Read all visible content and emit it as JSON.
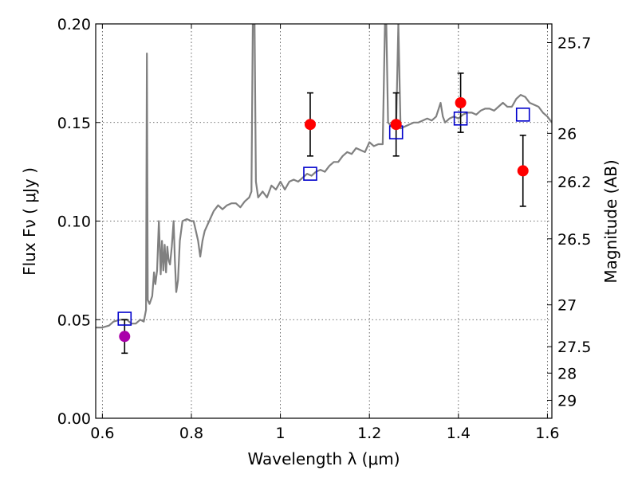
{
  "chart_data": {
    "type": "scatter",
    "xlabel": "Wavelength  λ (μm)",
    "ylabel": "Flux  Fν  ( μJy )",
    "y2label": "Magnitude (AB)",
    "xlim": [
      0.585,
      1.61
    ],
    "ylim": [
      0.0,
      0.2
    ],
    "grid": true,
    "x_ticks": [
      {
        "value": 0.6,
        "label": "0.6"
      },
      {
        "value": 0.8,
        "label": "0.8"
      },
      {
        "value": 1.0,
        "label": "1"
      },
      {
        "value": 1.2,
        "label": "1.2"
      },
      {
        "value": 1.4,
        "label": "1.4"
      },
      {
        "value": 1.6,
        "label": "1.6"
      }
    ],
    "y_ticks": [
      {
        "value": 0.0,
        "label": "0.00"
      },
      {
        "value": 0.05,
        "label": "0.05"
      },
      {
        "value": 0.1,
        "label": "0.10"
      },
      {
        "value": 0.15,
        "label": "0.15"
      },
      {
        "value": 0.2,
        "label": "0.20"
      }
    ],
    "y2_ticks": [
      {
        "flux": 0.1905,
        "label": "25.7"
      },
      {
        "flux": 0.1445,
        "label": "26"
      },
      {
        "flux": 0.12,
        "label": "26.2"
      },
      {
        "flux": 0.091,
        "label": "26.5"
      },
      {
        "flux": 0.0575,
        "label": "27"
      },
      {
        "flux": 0.0363,
        "label": "27.5"
      },
      {
        "flux": 0.0229,
        "label": "28"
      },
      {
        "flux": 0.0091,
        "label": "29"
      }
    ],
    "series": [
      {
        "kind": "model-spectrum",
        "color": "#808080",
        "points": [
          [
            0.585,
            0.046
          ],
          [
            0.6,
            0.046
          ],
          [
            0.615,
            0.047
          ],
          [
            0.625,
            0.049
          ],
          [
            0.64,
            0.05
          ],
          [
            0.655,
            0.05
          ],
          [
            0.665,
            0.048
          ],
          [
            0.675,
            0.048
          ],
          [
            0.685,
            0.05
          ],
          [
            0.693,
            0.049
          ],
          [
            0.698,
            0.055
          ],
          [
            0.7,
            0.185
          ],
          [
            0.702,
            0.06
          ],
          [
            0.706,
            0.058
          ],
          [
            0.712,
            0.062
          ],
          [
            0.716,
            0.074
          ],
          [
            0.719,
            0.068
          ],
          [
            0.723,
            0.075
          ],
          [
            0.727,
            0.1
          ],
          [
            0.731,
            0.073
          ],
          [
            0.734,
            0.09
          ],
          [
            0.737,
            0.075
          ],
          [
            0.74,
            0.088
          ],
          [
            0.743,
            0.074
          ],
          [
            0.746,
            0.087
          ],
          [
            0.749,
            0.08
          ],
          [
            0.752,
            0.078
          ],
          [
            0.756,
            0.087
          ],
          [
            0.76,
            0.1
          ],
          [
            0.763,
            0.08
          ],
          [
            0.766,
            0.064
          ],
          [
            0.77,
            0.07
          ],
          [
            0.774,
            0.09
          ],
          [
            0.78,
            0.1
          ],
          [
            0.79,
            0.101
          ],
          [
            0.8,
            0.1
          ],
          [
            0.805,
            0.1
          ],
          [
            0.81,
            0.095
          ],
          [
            0.815,
            0.09
          ],
          [
            0.82,
            0.082
          ],
          [
            0.825,
            0.09
          ],
          [
            0.83,
            0.095
          ],
          [
            0.84,
            0.1
          ],
          [
            0.85,
            0.105
          ],
          [
            0.86,
            0.108
          ],
          [
            0.87,
            0.106
          ],
          [
            0.88,
            0.108
          ],
          [
            0.89,
            0.109
          ],
          [
            0.9,
            0.109
          ],
          [
            0.91,
            0.107
          ],
          [
            0.92,
            0.11
          ],
          [
            0.93,
            0.112
          ],
          [
            0.935,
            0.115
          ],
          [
            0.938,
            0.2
          ],
          [
            0.942,
            0.2
          ],
          [
            0.945,
            0.12
          ],
          [
            0.95,
            0.112
          ],
          [
            0.96,
            0.115
          ],
          [
            0.97,
            0.112
          ],
          [
            0.98,
            0.118
          ],
          [
            0.99,
            0.116
          ],
          [
            1.0,
            0.12
          ],
          [
            1.01,
            0.116
          ],
          [
            1.02,
            0.12
          ],
          [
            1.03,
            0.121
          ],
          [
            1.04,
            0.12
          ],
          [
            1.05,
            0.122
          ],
          [
            1.06,
            0.124
          ],
          [
            1.07,
            0.123
          ],
          [
            1.08,
            0.125
          ],
          [
            1.09,
            0.126
          ],
          [
            1.1,
            0.125
          ],
          [
            1.11,
            0.128
          ],
          [
            1.12,
            0.13
          ],
          [
            1.13,
            0.13
          ],
          [
            1.14,
            0.133
          ],
          [
            1.15,
            0.135
          ],
          [
            1.16,
            0.134
          ],
          [
            1.17,
            0.137
          ],
          [
            1.18,
            0.136
          ],
          [
            1.19,
            0.135
          ],
          [
            1.2,
            0.14
          ],
          [
            1.21,
            0.138
          ],
          [
            1.22,
            0.139
          ],
          [
            1.23,
            0.139
          ],
          [
            1.235,
            0.2
          ],
          [
            1.238,
            0.2
          ],
          [
            1.242,
            0.15
          ],
          [
            1.25,
            0.148
          ],
          [
            1.26,
            0.147
          ],
          [
            1.265,
            0.2
          ],
          [
            1.27,
            0.147
          ],
          [
            1.28,
            0.148
          ],
          [
            1.29,
            0.149
          ],
          [
            1.3,
            0.15
          ],
          [
            1.31,
            0.15
          ],
          [
            1.32,
            0.151
          ],
          [
            1.33,
            0.152
          ],
          [
            1.34,
            0.151
          ],
          [
            1.35,
            0.153
          ],
          [
            1.36,
            0.16
          ],
          [
            1.365,
            0.153
          ],
          [
            1.37,
            0.15
          ],
          [
            1.38,
            0.152
          ],
          [
            1.39,
            0.153
          ],
          [
            1.4,
            0.152
          ],
          [
            1.41,
            0.154
          ],
          [
            1.42,
            0.155
          ],
          [
            1.43,
            0.155
          ],
          [
            1.44,
            0.154
          ],
          [
            1.45,
            0.156
          ],
          [
            1.46,
            0.157
          ],
          [
            1.47,
            0.157
          ],
          [
            1.48,
            0.156
          ],
          [
            1.49,
            0.158
          ],
          [
            1.5,
            0.16
          ],
          [
            1.51,
            0.158
          ],
          [
            1.52,
            0.158
          ],
          [
            1.53,
            0.162
          ],
          [
            1.54,
            0.164
          ],
          [
            1.55,
            0.163
          ],
          [
            1.56,
            0.16
          ],
          [
            1.57,
            0.159
          ],
          [
            1.58,
            0.158
          ],
          [
            1.59,
            0.155
          ],
          [
            1.6,
            0.153
          ],
          [
            1.61,
            0.15
          ]
        ]
      },
      {
        "kind": "model-photometry",
        "marker": "open-square",
        "color": "#0000cc",
        "points": [
          [
            0.65,
            0.0505
          ],
          [
            1.067,
            0.124
          ],
          [
            1.26,
            0.145
          ],
          [
            1.405,
            0.152
          ],
          [
            1.545,
            0.154
          ]
        ]
      },
      {
        "kind": "observed-photometry",
        "marker": "filled-circle",
        "points": [
          {
            "x": 0.65,
            "y": 0.0415,
            "yerr": [
              0.0085,
              0.0085
            ],
            "color": "#aa00aa"
          },
          {
            "x": 1.067,
            "y": 0.149,
            "yerr": [
              0.016,
              0.016
            ],
            "color": "#ff0000"
          },
          {
            "x": 1.26,
            "y": 0.149,
            "yerr": [
              0.016,
              0.016
            ],
            "color": "#ff0000"
          },
          {
            "x": 1.405,
            "y": 0.16,
            "yerr": [
              0.015,
              0.015
            ],
            "color": "#ff0000"
          },
          {
            "x": 1.545,
            "y": 0.1255,
            "yerr": [
              0.018,
              0.018
            ],
            "color": "#ff0000"
          }
        ]
      }
    ]
  }
}
